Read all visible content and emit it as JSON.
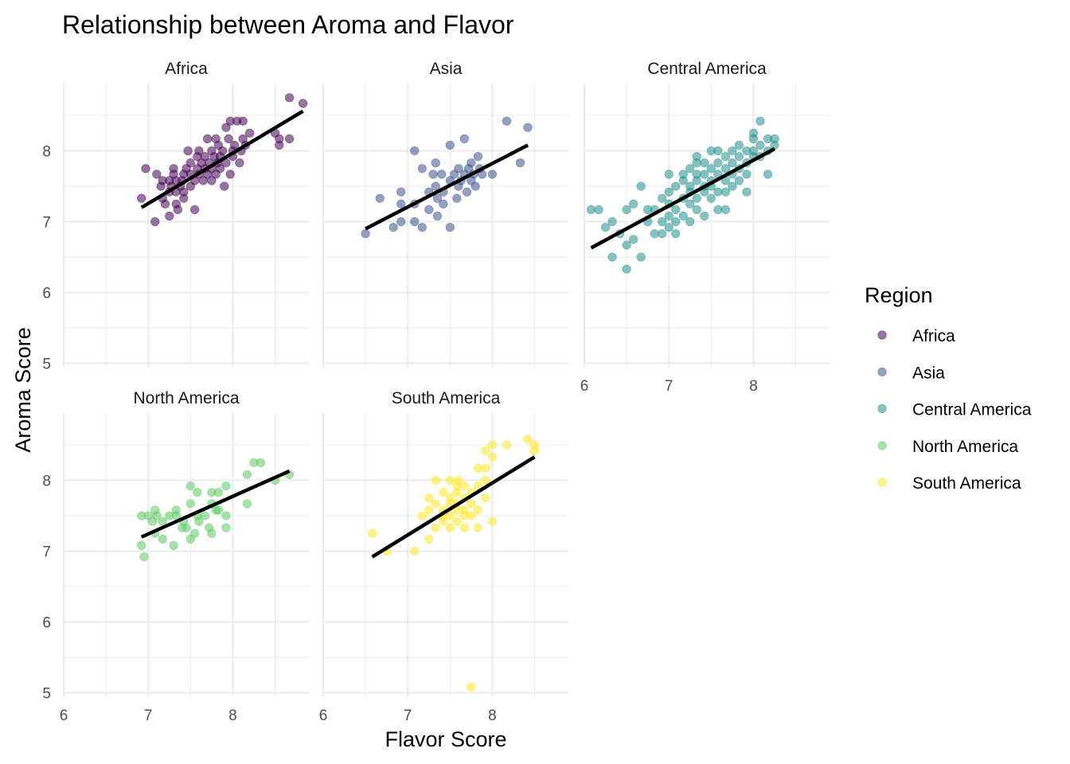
{
  "chart_data": {
    "type": "scatter",
    "title": "Relationship between Aroma and Flavor",
    "xlabel": "Flavor Score",
    "ylabel": "Aroma Score",
    "xlim": [
      6,
      8.9
    ],
    "ylim": [
      4.95,
      8.95
    ],
    "x_ticks": [
      "6",
      "7",
      "8"
    ],
    "y_ticks": [
      "5",
      "6",
      "7",
      "8"
    ],
    "legend": {
      "title": "Region",
      "position": "right"
    },
    "series": [
      {
        "name": "Africa",
        "color": "#440154",
        "fit": {
          "x": [
            6.92,
            8.83
          ],
          "y": [
            7.2,
            8.56
          ]
        },
        "points": [
          [
            6.92,
            7.33
          ],
          [
            6.97,
            7.75
          ],
          [
            7.08,
            7.0
          ],
          [
            7.1,
            7.67
          ],
          [
            7.15,
            7.5
          ],
          [
            7.17,
            7.58
          ],
          [
            7.17,
            7.33
          ],
          [
            7.2,
            7.25
          ],
          [
            7.25,
            7.58
          ],
          [
            7.25,
            7.42
          ],
          [
            7.25,
            7.08
          ],
          [
            7.27,
            7.5
          ],
          [
            7.3,
            7.67
          ],
          [
            7.3,
            7.75
          ],
          [
            7.33,
            7.42
          ],
          [
            7.33,
            7.58
          ],
          [
            7.33,
            7.25
          ],
          [
            7.35,
            7.17
          ],
          [
            7.38,
            7.5
          ],
          [
            7.4,
            7.58
          ],
          [
            7.42,
            7.67
          ],
          [
            7.42,
            7.42
          ],
          [
            7.42,
            7.33
          ],
          [
            7.45,
            7.75
          ],
          [
            7.47,
            8.0
          ],
          [
            7.5,
            7.5
          ],
          [
            7.5,
            7.67
          ],
          [
            7.5,
            7.83
          ],
          [
            7.55,
            7.17
          ],
          [
            7.55,
            7.58
          ],
          [
            7.58,
            7.75
          ],
          [
            7.58,
            7.92
          ],
          [
            7.6,
            7.67
          ],
          [
            7.6,
            8.0
          ],
          [
            7.63,
            7.83
          ],
          [
            7.65,
            7.58
          ],
          [
            7.67,
            7.75
          ],
          [
            7.67,
            7.92
          ],
          [
            7.7,
            7.67
          ],
          [
            7.7,
            8.17
          ],
          [
            7.72,
            7.83
          ],
          [
            7.75,
            7.58
          ],
          [
            7.75,
            7.75
          ],
          [
            7.75,
            8.0
          ],
          [
            7.78,
            7.92
          ],
          [
            7.8,
            7.67
          ],
          [
            7.8,
            8.17
          ],
          [
            7.82,
            7.83
          ],
          [
            7.83,
            8.08
          ],
          [
            7.85,
            7.75
          ],
          [
            7.85,
            7.92
          ],
          [
            7.88,
            8.0
          ],
          [
            7.9,
            7.5
          ],
          [
            7.92,
            8.33
          ],
          [
            7.92,
            7.83
          ],
          [
            7.95,
            8.17
          ],
          [
            7.97,
            7.67
          ],
          [
            7.97,
            8.42
          ],
          [
            8.0,
            8.0
          ],
          [
            8.0,
            7.92
          ],
          [
            8.02,
            8.08
          ],
          [
            8.05,
            8.42
          ],
          [
            8.08,
            7.83
          ],
          [
            8.1,
            8.0
          ],
          [
            8.12,
            8.42
          ],
          [
            8.12,
            8.17
          ],
          [
            8.15,
            8.08
          ],
          [
            8.2,
            8.25
          ],
          [
            8.5,
            8.25
          ],
          [
            8.55,
            8.08
          ],
          [
            8.55,
            8.17
          ],
          [
            8.67,
            8.17
          ],
          [
            8.67,
            8.75
          ],
          [
            8.83,
            8.67
          ]
        ]
      },
      {
        "name": "Asia",
        "color": "#3b528b",
        "fit": {
          "x": [
            6.5,
            8.42
          ],
          "y": [
            6.9,
            8.08
          ]
        },
        "points": [
          [
            6.5,
            6.83
          ],
          [
            6.67,
            7.33
          ],
          [
            6.83,
            6.92
          ],
          [
            6.92,
            7.42
          ],
          [
            6.92,
            7.25
          ],
          [
            6.92,
            7.0
          ],
          [
            7.08,
            8.0
          ],
          [
            7.08,
            7.0
          ],
          [
            7.08,
            7.25
          ],
          [
            7.17,
            7.75
          ],
          [
            7.17,
            6.92
          ],
          [
            7.25,
            7.42
          ],
          [
            7.25,
            7.17
          ],
          [
            7.3,
            7.67
          ],
          [
            7.33,
            7.5
          ],
          [
            7.33,
            7.83
          ],
          [
            7.35,
            7.08
          ],
          [
            7.35,
            7.33
          ],
          [
            7.4,
            7.67
          ],
          [
            7.42,
            7.42
          ],
          [
            7.42,
            7.25
          ],
          [
            7.5,
            7.58
          ],
          [
            7.5,
            8.08
          ],
          [
            7.5,
            6.92
          ],
          [
            7.55,
            7.67
          ],
          [
            7.58,
            7.33
          ],
          [
            7.6,
            7.5
          ],
          [
            7.6,
            7.75
          ],
          [
            7.63,
            7.58
          ],
          [
            7.67,
            7.67
          ],
          [
            7.67,
            8.17
          ],
          [
            7.7,
            7.42
          ],
          [
            7.72,
            7.75
          ],
          [
            7.75,
            7.58
          ],
          [
            7.75,
            7.83
          ],
          [
            7.78,
            7.67
          ],
          [
            7.8,
            7.5
          ],
          [
            7.83,
            7.92
          ],
          [
            7.85,
            7.75
          ],
          [
            7.88,
            7.67
          ],
          [
            8.0,
            7.67
          ],
          [
            8.17,
            8.42
          ],
          [
            8.33,
            7.83
          ],
          [
            8.42,
            8.33
          ]
        ]
      },
      {
        "name": "Central America",
        "color": "#21908d",
        "fit": {
          "x": [
            6.08,
            8.25
          ],
          "y": [
            6.63,
            8.03
          ]
        },
        "points": [
          [
            6.08,
            7.17
          ],
          [
            6.17,
            7.17
          ],
          [
            6.25,
            6.92
          ],
          [
            6.33,
            7.0
          ],
          [
            6.33,
            6.5
          ],
          [
            6.42,
            6.83
          ],
          [
            6.5,
            6.67
          ],
          [
            6.5,
            6.33
          ],
          [
            6.5,
            7.17
          ],
          [
            6.58,
            6.75
          ],
          [
            6.58,
            7.25
          ],
          [
            6.67,
            6.5
          ],
          [
            6.67,
            7.5
          ],
          [
            6.75,
            7.0
          ],
          [
            6.75,
            7.17
          ],
          [
            6.83,
            6.83
          ],
          [
            6.83,
            7.17
          ],
          [
            6.92,
            7.0
          ],
          [
            6.92,
            6.83
          ],
          [
            6.92,
            7.33
          ],
          [
            7.0,
            7.08
          ],
          [
            7.0,
            7.25
          ],
          [
            7.0,
            7.42
          ],
          [
            7.0,
            7.67
          ],
          [
            7.0,
            6.92
          ],
          [
            7.08,
            7.17
          ],
          [
            7.08,
            7.5
          ],
          [
            7.08,
            7.0
          ],
          [
            7.08,
            6.83
          ],
          [
            7.17,
            7.33
          ],
          [
            7.17,
            7.58
          ],
          [
            7.17,
            7.08
          ],
          [
            7.17,
            7.67
          ],
          [
            7.25,
            7.42
          ],
          [
            7.25,
            7.25
          ],
          [
            7.25,
            7.5
          ],
          [
            7.25,
            7.75
          ],
          [
            7.25,
            7.0
          ],
          [
            7.33,
            7.58
          ],
          [
            7.33,
            7.33
          ],
          [
            7.33,
            7.83
          ],
          [
            7.33,
            7.17
          ],
          [
            7.33,
            7.67
          ],
          [
            7.33,
            7.92
          ],
          [
            7.42,
            7.5
          ],
          [
            7.42,
            7.67
          ],
          [
            7.42,
            7.42
          ],
          [
            7.42,
            7.83
          ],
          [
            7.42,
            7.08
          ],
          [
            7.5,
            7.58
          ],
          [
            7.5,
            7.75
          ],
          [
            7.5,
            7.33
          ],
          [
            7.5,
            8.0
          ],
          [
            7.5,
            7.5
          ],
          [
            7.58,
            7.67
          ],
          [
            7.58,
            7.83
          ],
          [
            7.58,
            7.42
          ],
          [
            7.58,
            7.17
          ],
          [
            7.58,
            8.0
          ],
          [
            7.67,
            7.75
          ],
          [
            7.67,
            7.58
          ],
          [
            7.67,
            7.92
          ],
          [
            7.67,
            7.42
          ],
          [
            7.67,
            7.17
          ],
          [
            7.75,
            7.67
          ],
          [
            7.75,
            7.83
          ],
          [
            7.75,
            8.0
          ],
          [
            7.75,
            7.5
          ],
          [
            7.83,
            7.75
          ],
          [
            7.83,
            7.92
          ],
          [
            7.83,
            7.58
          ],
          [
            7.83,
            8.08
          ],
          [
            7.92,
            7.83
          ],
          [
            7.92,
            8.0
          ],
          [
            7.92,
            7.67
          ],
          [
            7.92,
            7.42
          ],
          [
            8.0,
            8.0
          ],
          [
            8.0,
            7.92
          ],
          [
            8.0,
            8.17
          ],
          [
            8.0,
            8.25
          ],
          [
            8.08,
            8.08
          ],
          [
            8.08,
            7.92
          ],
          [
            8.08,
            8.42
          ],
          [
            8.17,
            8.17
          ],
          [
            8.17,
            7.67
          ],
          [
            8.17,
            8.0
          ],
          [
            8.25,
            8.17
          ],
          [
            8.25,
            8.08
          ]
        ]
      },
      {
        "name": "North America",
        "color": "#5ec962",
        "fit": {
          "x": [
            6.92,
            8.67
          ],
          "y": [
            7.2,
            8.13
          ]
        },
        "points": [
          [
            6.92,
            7.5
          ],
          [
            6.92,
            7.08
          ],
          [
            6.95,
            6.92
          ],
          [
            7.0,
            7.5
          ],
          [
            7.05,
            7.42
          ],
          [
            7.08,
            7.58
          ],
          [
            7.08,
            7.25
          ],
          [
            7.1,
            7.5
          ],
          [
            7.17,
            7.17
          ],
          [
            7.17,
            7.42
          ],
          [
            7.25,
            7.5
          ],
          [
            7.3,
            7.08
          ],
          [
            7.33,
            7.5
          ],
          [
            7.33,
            7.58
          ],
          [
            7.4,
            7.33
          ],
          [
            7.42,
            7.42
          ],
          [
            7.45,
            7.33
          ],
          [
            7.5,
            7.67
          ],
          [
            7.5,
            7.17
          ],
          [
            7.5,
            7.92
          ],
          [
            7.55,
            7.25
          ],
          [
            7.58,
            7.5
          ],
          [
            7.58,
            7.83
          ],
          [
            7.6,
            7.42
          ],
          [
            7.67,
            7.5
          ],
          [
            7.72,
            7.33
          ],
          [
            7.75,
            7.25
          ],
          [
            7.75,
            7.67
          ],
          [
            7.75,
            7.83
          ],
          [
            7.8,
            7.58
          ],
          [
            7.83,
            7.58
          ],
          [
            7.83,
            7.83
          ],
          [
            7.92,
            7.92
          ],
          [
            7.92,
            7.33
          ],
          [
            7.92,
            7.5
          ],
          [
            8.17,
            7.67
          ],
          [
            8.17,
            8.08
          ],
          [
            8.25,
            8.25
          ],
          [
            8.33,
            8.25
          ],
          [
            8.5,
            8.0
          ],
          [
            8.67,
            8.08
          ]
        ]
      },
      {
        "name": "South America",
        "color": "#fde725",
        "fit": {
          "x": [
            6.58,
            8.5
          ],
          "y": [
            6.92,
            8.33
          ]
        },
        "points": [
          [
            6.58,
            7.25
          ],
          [
            6.75,
            7.0
          ],
          [
            7.08,
            7.0
          ],
          [
            7.17,
            7.5
          ],
          [
            7.25,
            7.17
          ],
          [
            7.25,
            7.58
          ],
          [
            7.25,
            7.75
          ],
          [
            7.33,
            7.33
          ],
          [
            7.33,
            7.67
          ],
          [
            7.33,
            8.0
          ],
          [
            7.42,
            7.42
          ],
          [
            7.42,
            7.58
          ],
          [
            7.42,
            7.83
          ],
          [
            7.42,
            7.5
          ],
          [
            7.5,
            7.33
          ],
          [
            7.5,
            7.67
          ],
          [
            7.5,
            7.75
          ],
          [
            7.5,
            7.5
          ],
          [
            7.5,
            8.0
          ],
          [
            7.58,
            7.42
          ],
          [
            7.58,
            7.58
          ],
          [
            7.58,
            7.83
          ],
          [
            7.58,
            7.92
          ],
          [
            7.58,
            7.67
          ],
          [
            7.6,
            8.0
          ],
          [
            7.67,
            7.5
          ],
          [
            7.67,
            7.75
          ],
          [
            7.67,
            7.33
          ],
          [
            7.67,
            7.92
          ],
          [
            7.67,
            7.58
          ],
          [
            7.75,
            7.67
          ],
          [
            7.75,
            7.83
          ],
          [
            7.75,
            7.5
          ],
          [
            7.75,
            5.08
          ],
          [
            7.83,
            7.58
          ],
          [
            7.83,
            7.92
          ],
          [
            7.83,
            7.33
          ],
          [
            7.83,
            8.17
          ],
          [
            7.92,
            7.75
          ],
          [
            7.92,
            8.17
          ],
          [
            7.92,
            8.0
          ],
          [
            7.92,
            8.42
          ],
          [
            8.0,
            8.5
          ],
          [
            8.0,
            7.42
          ],
          [
            8.0,
            8.33
          ],
          [
            8.17,
            8.5
          ],
          [
            8.42,
            8.58
          ],
          [
            8.5,
            8.5
          ],
          [
            8.5,
            8.42
          ]
        ]
      }
    ]
  }
}
